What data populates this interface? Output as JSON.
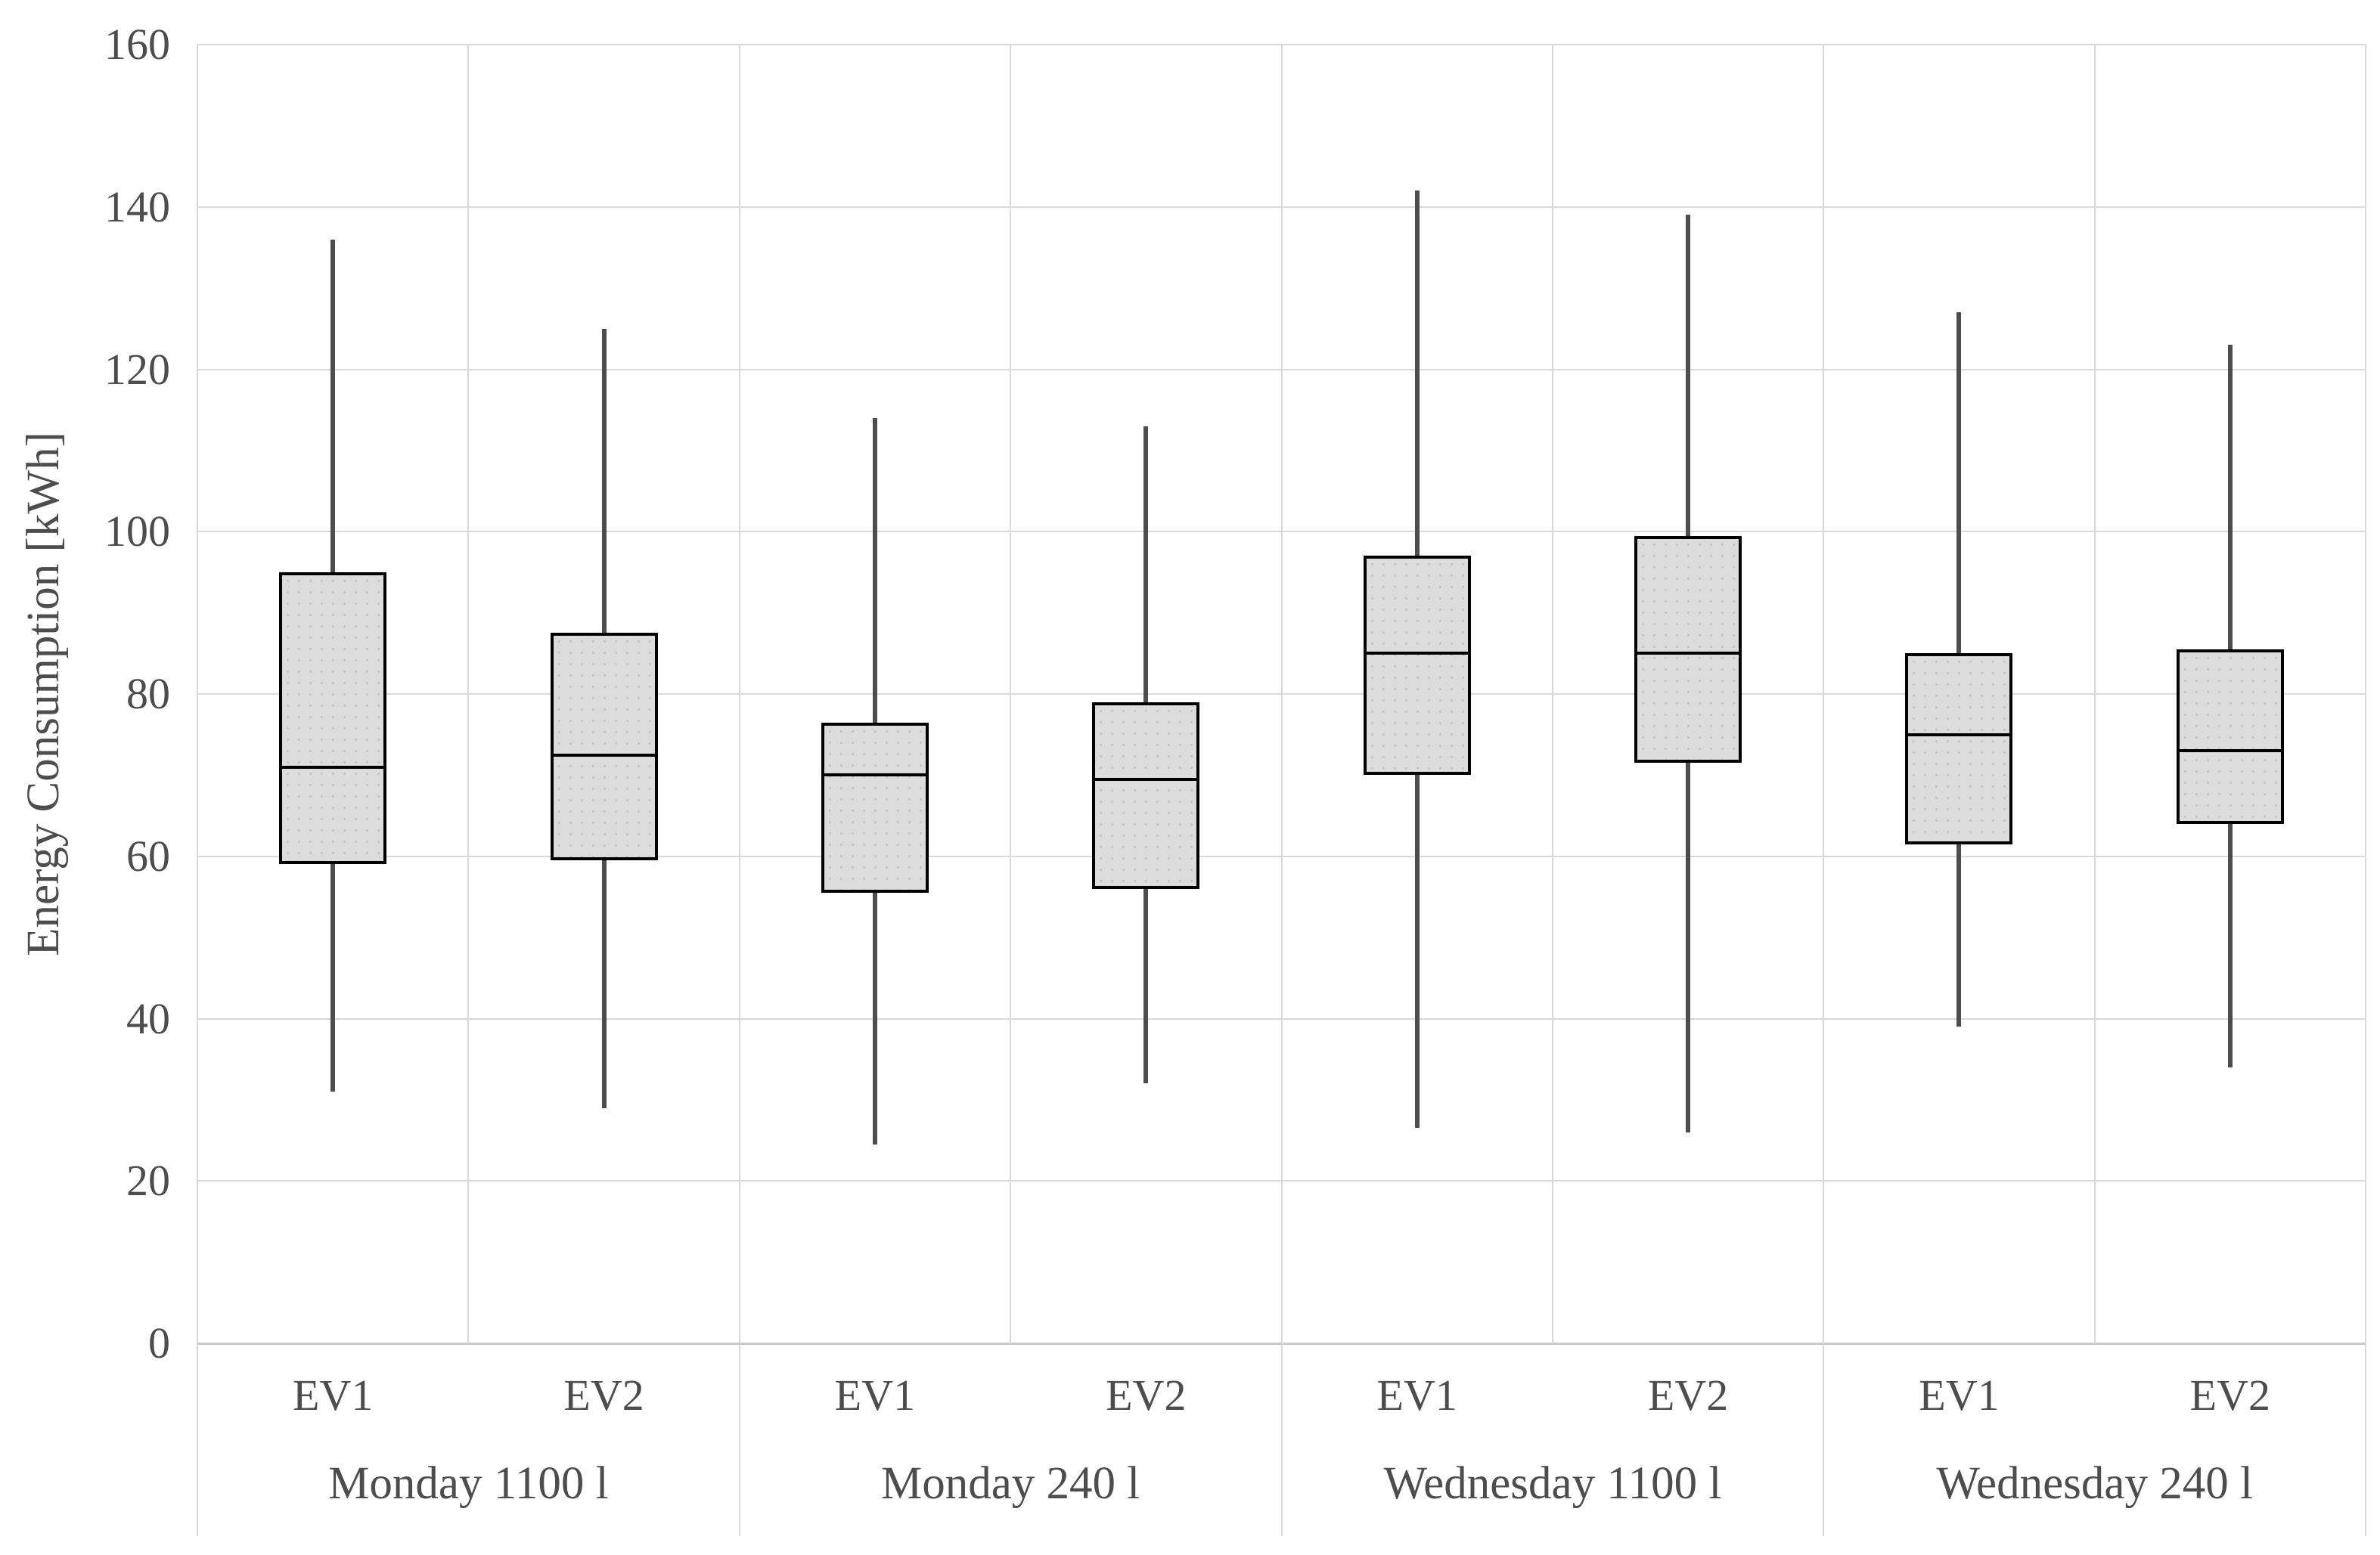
{
  "chart_data": {
    "type": "boxplot",
    "title": "",
    "xlabel": "",
    "ylabel": "Energy Consumption [kWh]",
    "ylim": [
      0,
      160
    ],
    "y_ticks": [
      0,
      20,
      40,
      60,
      80,
      100,
      120,
      140,
      160
    ],
    "grid": true,
    "legend": "none",
    "colors": {
      "box_fill": "#dcdcdc",
      "box_border": "#000000",
      "median": "#000000",
      "whisker": "#4d4d4d",
      "gridline": "#d9d9d9",
      "text": "#4d4d4d",
      "background": "#ffffff"
    },
    "groups": [
      {
        "label": "Monday 1100 l",
        "boxes": [
          {
            "label": "EV1",
            "min": 31,
            "q1": 59,
            "median": 71,
            "q3": 95,
            "max": 136
          },
          {
            "label": "EV2",
            "min": 29,
            "q1": 59.5,
            "median": 72.5,
            "q3": 87.5,
            "max": 125
          }
        ]
      },
      {
        "label": "Monday 240 l",
        "boxes": [
          {
            "label": "EV1",
            "min": 24.5,
            "q1": 55.5,
            "median": 70,
            "q3": 76.5,
            "max": 114
          },
          {
            "label": "EV2",
            "min": 32,
            "q1": 56,
            "median": 69.5,
            "q3": 79,
            "max": 113
          }
        ]
      },
      {
        "label": "Wednesday 1100 l",
        "boxes": [
          {
            "label": "EV1",
            "min": 26.5,
            "q1": 70,
            "median": 85,
            "q3": 97,
            "max": 142
          },
          {
            "label": "EV2",
            "min": 26,
            "q1": 71.5,
            "median": 85,
            "q3": 99.5,
            "max": 139
          }
        ]
      },
      {
        "label": "Wednesday 240 l",
        "boxes": [
          {
            "label": "EV1",
            "min": 39,
            "q1": 61.5,
            "median": 75,
            "q3": 85,
            "max": 127
          },
          {
            "label": "EV2",
            "min": 34,
            "q1": 64,
            "median": 73,
            "q3": 85.5,
            "max": 123
          }
        ]
      }
    ]
  }
}
